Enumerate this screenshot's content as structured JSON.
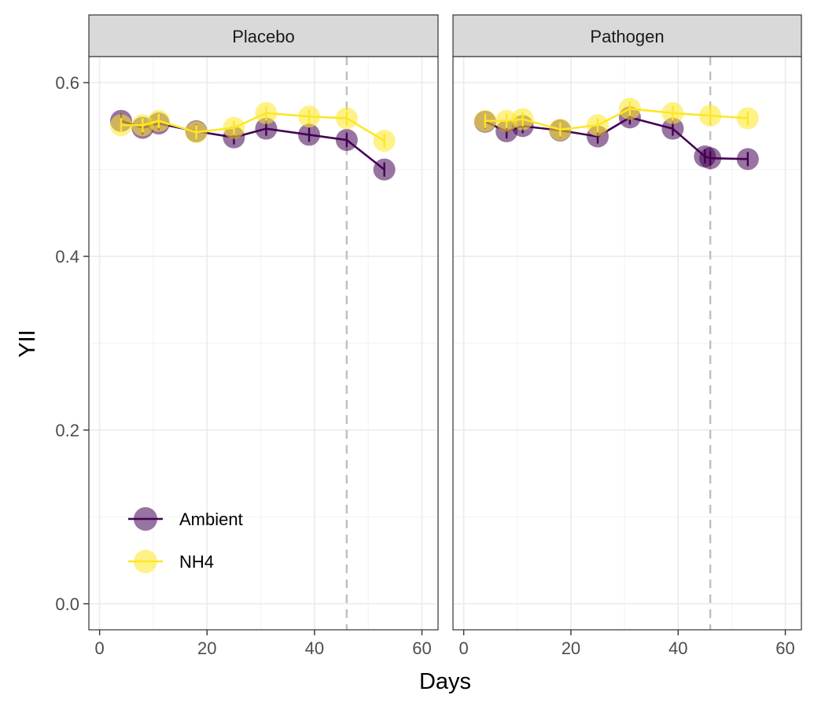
{
  "chart_data": {
    "type": "line",
    "xlabel": "Days",
    "ylabel": "YII",
    "xlim": [
      -2,
      63
    ],
    "ylim": [
      -0.03,
      0.63
    ],
    "x_ticks": [
      0,
      20,
      40,
      60
    ],
    "y_ticks": [
      0.0,
      0.2,
      0.4,
      0.6
    ],
    "x_tick_labels": [
      "0",
      "20",
      "40",
      "60"
    ],
    "y_tick_labels": [
      "0.0",
      "0.2",
      "0.4",
      "0.6"
    ],
    "reference_line_x": 46,
    "legend_position": "bottom-left",
    "panels": [
      {
        "name": "Placebo",
        "series": [
          {
            "name": "Ambient",
            "color": "#440154",
            "x": [
              4,
              8,
              11,
              18,
              25,
              31,
              39,
              46,
              53
            ],
            "y": [
              0.556,
              0.548,
              0.553,
              0.544,
              0.537,
              0.547,
              0.54,
              0.534,
              0.5
            ]
          },
          {
            "name": "NH4",
            "color": "#FDE725",
            "x": [
              4,
              8,
              11,
              18,
              25,
              31,
              39,
              46,
              53
            ],
            "y": [
              0.551,
              0.551,
              0.556,
              0.543,
              0.548,
              0.565,
              0.561,
              0.559,
              0.533
            ]
          }
        ]
      },
      {
        "name": "Pathogen",
        "series": [
          {
            "name": "Ambient",
            "color": "#440154",
            "x": [
              4,
              8,
              11,
              18,
              25,
              31,
              39,
              45,
              46,
              53
            ],
            "y": [
              0.555,
              0.544,
              0.55,
              0.545,
              0.538,
              0.56,
              0.547,
              0.515,
              0.513,
              0.512
            ]
          },
          {
            "name": "NH4",
            "color": "#FDE725",
            "x": [
              4,
              8,
              11,
              18,
              25,
              31,
              39,
              46,
              53
            ],
            "y": [
              0.556,
              0.556,
              0.558,
              0.546,
              0.551,
              0.57,
              0.565,
              0.562,
              0.559
            ]
          }
        ]
      }
    ]
  }
}
